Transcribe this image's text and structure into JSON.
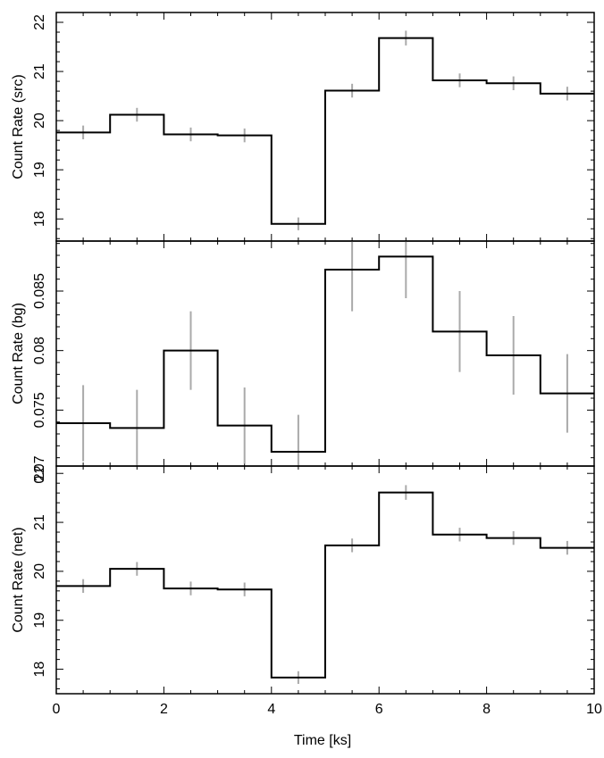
{
  "chart_data": [
    {
      "type": "line",
      "style": "step",
      "ylabel": "Count Rate (src)",
      "xlabel": "",
      "xlim": [
        0,
        10
      ],
      "ylim": [
        17.55,
        22.2
      ],
      "x_edges": [
        0,
        1,
        2,
        3,
        4,
        5,
        6,
        7,
        8,
        9,
        10
      ],
      "series": [
        {
          "x": [
            0.5,
            1.5,
            2.5,
            3.5,
            4.5,
            5.5,
            6.5,
            7.5,
            8.5,
            9.5
          ],
          "y": [
            19.76,
            20.12,
            19.72,
            19.7,
            17.9,
            20.61,
            21.68,
            20.82,
            20.76,
            20.55
          ],
          "yerr": [
            0.14,
            0.14,
            0.14,
            0.14,
            0.13,
            0.14,
            0.15,
            0.14,
            0.14,
            0.14
          ]
        }
      ],
      "yticks": [
        18,
        19,
        20,
        21,
        22
      ],
      "ytick_labels": [
        "18",
        "19",
        "20",
        "21",
        "22"
      ],
      "xticks": [
        0,
        2,
        4,
        6,
        8,
        10
      ],
      "colors": {
        "line": "#000000",
        "errorbar": "#aaaaaa"
      }
    },
    {
      "type": "line",
      "style": "step",
      "ylabel": "Count Rate (bg)",
      "xlabel": "",
      "xlim": [
        0,
        10
      ],
      "ylim": [
        0.0703,
        0.0892
      ],
      "x_edges": [
        0,
        1,
        2,
        3,
        4,
        5,
        6,
        7,
        8,
        9,
        10
      ],
      "series": [
        {
          "x": [
            0.5,
            1.5,
            2.5,
            3.5,
            4.5,
            5.5,
            6.5,
            7.5,
            8.5,
            9.5
          ],
          "y": [
            0.0739,
            0.0735,
            0.08,
            0.0737,
            0.0715,
            0.0868,
            0.0879,
            0.0816,
            0.0796,
            0.0764
          ],
          "yerr": [
            0.0032,
            0.0032,
            0.0033,
            0.0032,
            0.0031,
            0.0035,
            0.0035,
            0.0034,
            0.0033,
            0.0033
          ]
        }
      ],
      "yticks": [
        0.07,
        0.075,
        0.08,
        0.085
      ],
      "ytick_labels": [
        "0.07",
        "0.075",
        "0.08",
        "0.085"
      ],
      "xticks": [
        0,
        2,
        4,
        6,
        8,
        10
      ],
      "colors": {
        "line": "#000000",
        "errorbar": "#aaaaaa"
      }
    },
    {
      "type": "line",
      "style": "step",
      "ylabel": "Count Rate (net)",
      "xlabel": "Time [ks]",
      "xlim": [
        0,
        10
      ],
      "ylim": [
        17.5,
        22.15
      ],
      "x_edges": [
        0,
        1,
        2,
        3,
        4,
        5,
        6,
        7,
        8,
        9,
        10
      ],
      "series": [
        {
          "x": [
            0.5,
            1.5,
            2.5,
            3.5,
            4.5,
            5.5,
            6.5,
            7.5,
            8.5,
            9.5
          ],
          "y": [
            19.7,
            20.05,
            19.65,
            19.63,
            17.83,
            20.53,
            21.61,
            20.75,
            20.68,
            20.48
          ],
          "yerr": [
            0.14,
            0.14,
            0.14,
            0.14,
            0.13,
            0.14,
            0.15,
            0.14,
            0.14,
            0.14
          ]
        }
      ],
      "yticks": [
        18,
        19,
        20,
        21,
        22
      ],
      "ytick_labels": [
        "18",
        "19",
        "20",
        "21",
        "22"
      ],
      "xticks": [
        0,
        2,
        4,
        6,
        8,
        10
      ],
      "xtick_labels": [
        "0",
        "2",
        "4",
        "6",
        "8",
        "10"
      ],
      "colors": {
        "line": "#000000",
        "errorbar": "#aaaaaa"
      }
    }
  ]
}
